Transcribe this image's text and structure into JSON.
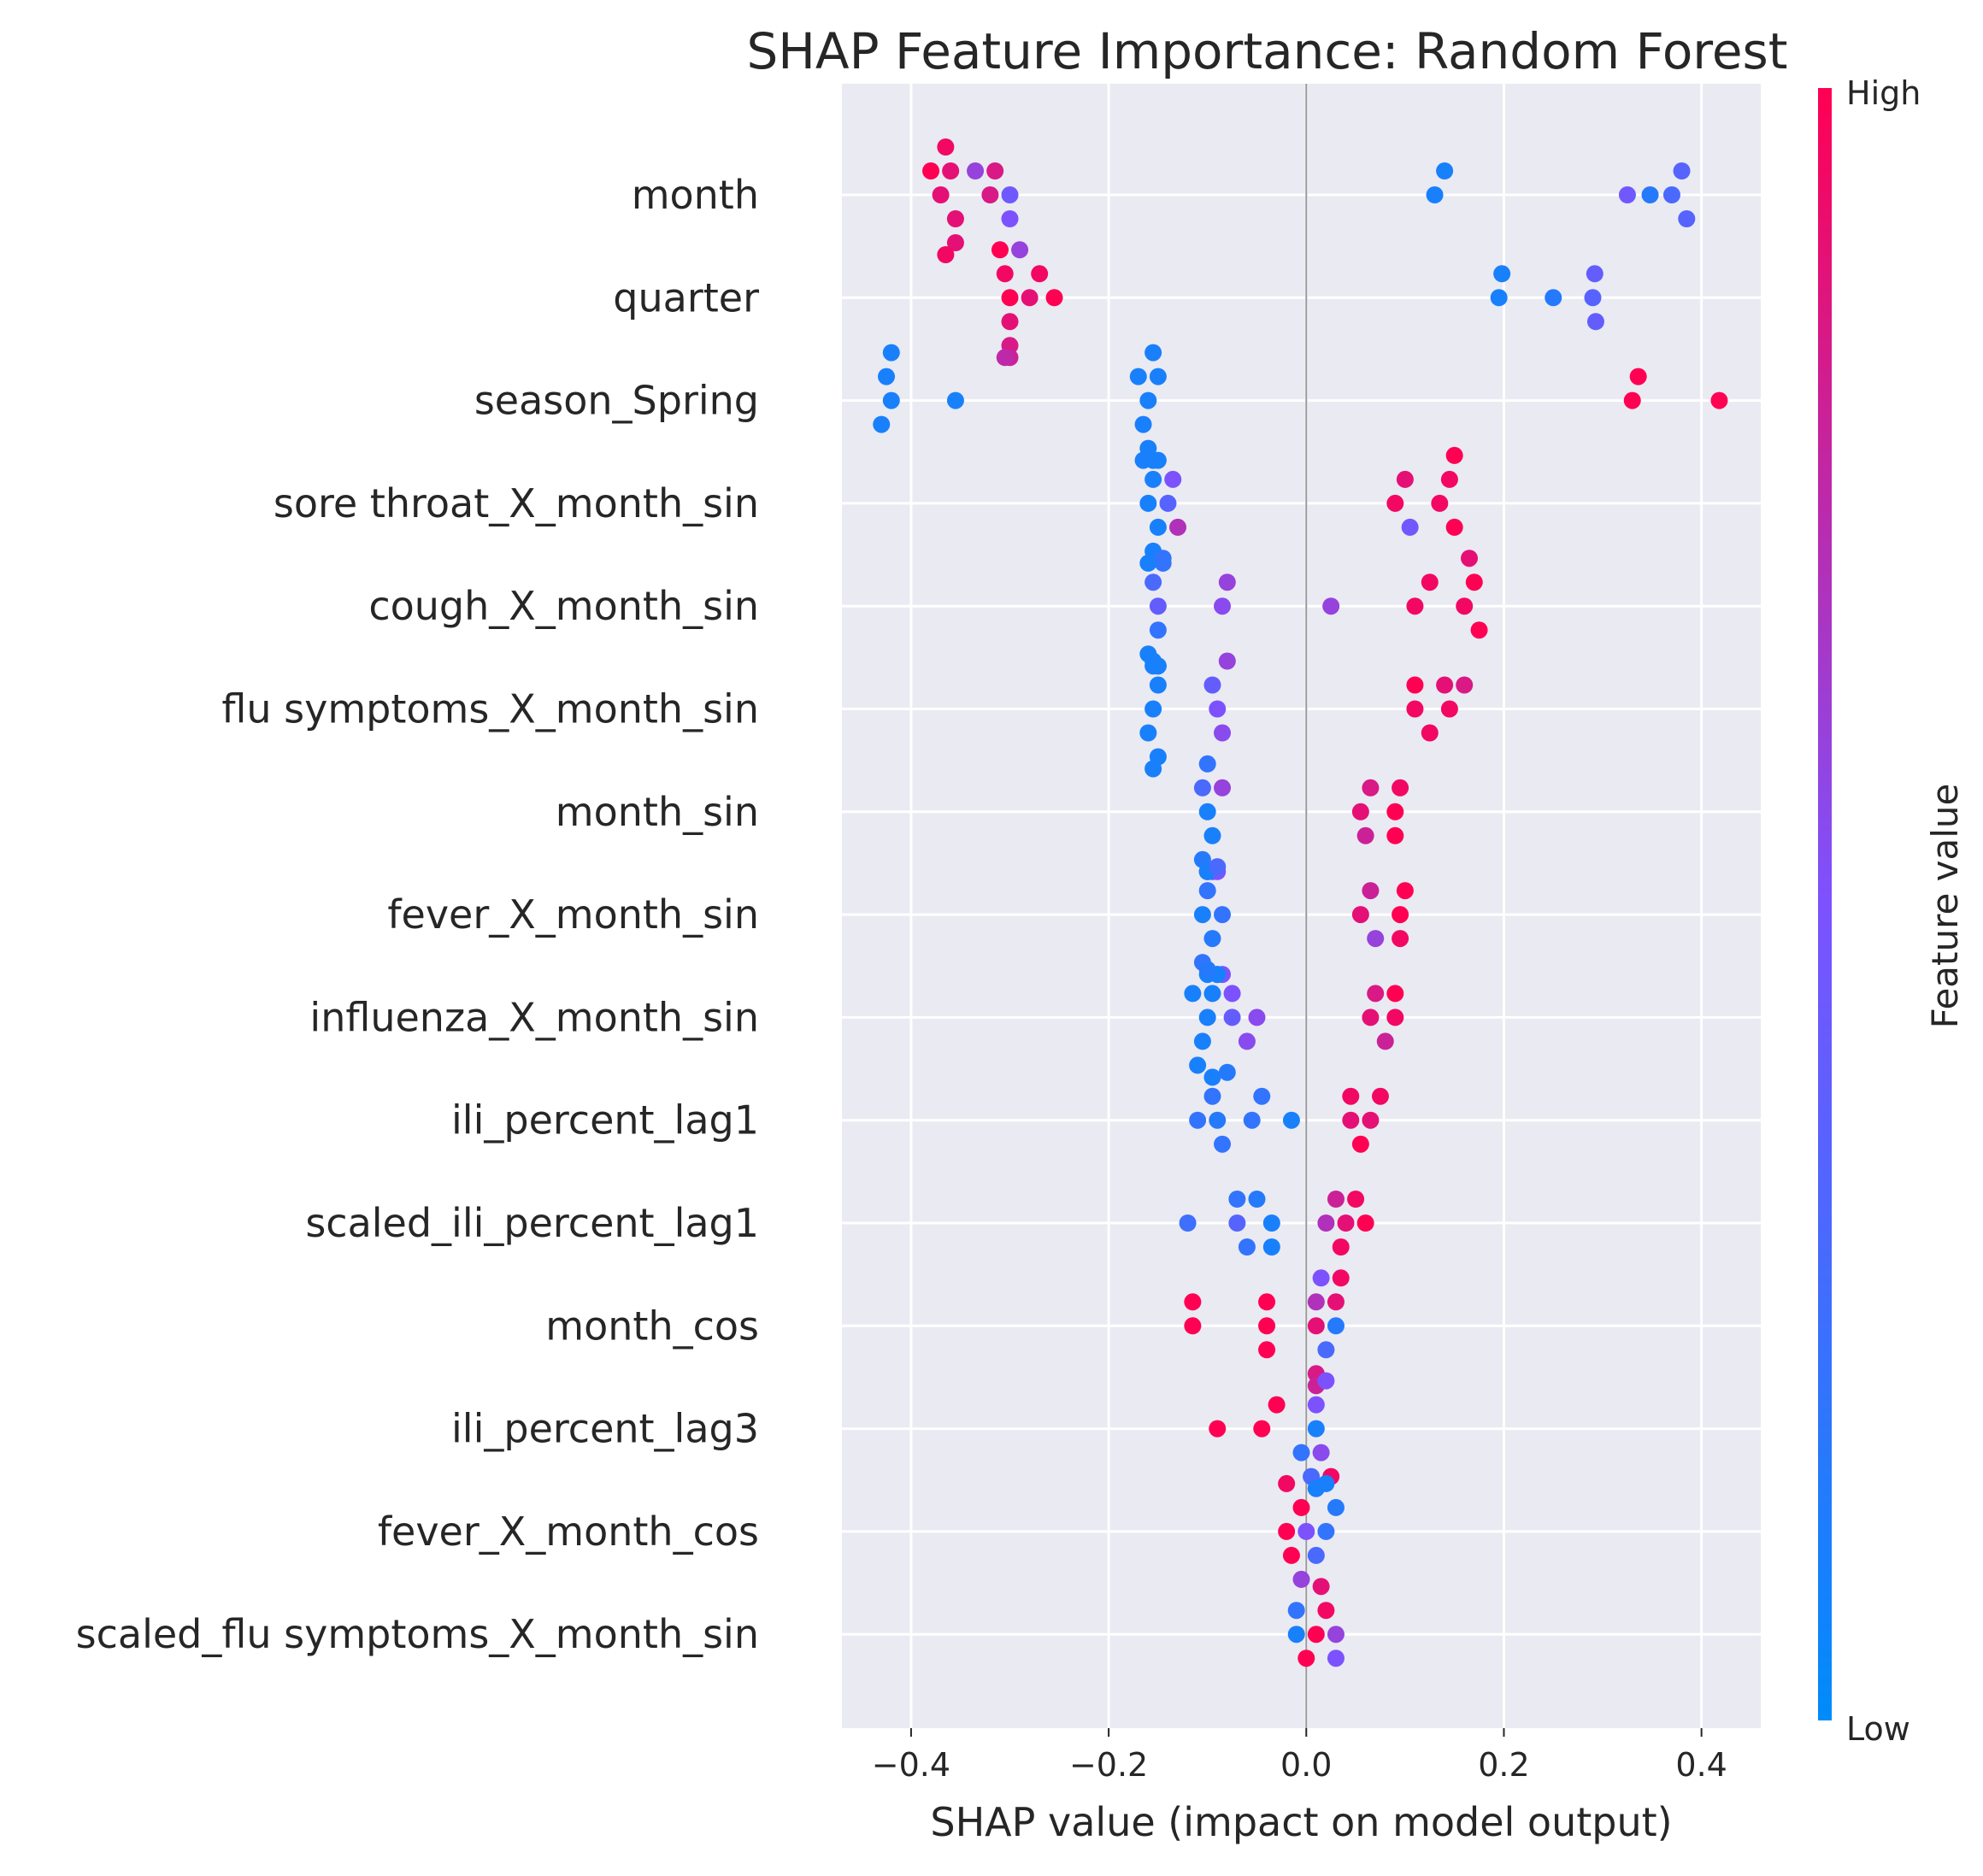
{
  "chart_data": {
    "type": "scatter",
    "title": "SHAP Feature Importance: Random Forest",
    "xlabel": "SHAP value (impact on model output)",
    "xlim": [
      -0.47,
      0.46
    ],
    "xticks": [
      "−0.4",
      "−0.2",
      "0.0",
      "0.2",
      "0.4"
    ],
    "xtick_values": [
      -0.4,
      -0.2,
      0.0,
      0.2,
      0.4
    ],
    "grid": true,
    "colorbar": {
      "label": "Feature value",
      "high": "High",
      "low": "Low",
      "low_color": "#008bfb",
      "mid_color": "#7c52ff",
      "high_color": "#ff0052"
    },
    "features": [
      {
        "name": "month",
        "points": [
          [
            -0.37,
            0.9
          ],
          [
            -0.36,
            0.9
          ],
          [
            -0.355,
            0.9
          ],
          [
            -0.32,
            0.85
          ],
          [
            -0.3,
            0.45
          ],
          [
            -0.38,
            1
          ],
          [
            -0.365,
            0.95
          ],
          [
            -0.355,
            0.9
          ],
          [
            -0.335,
            0.6
          ],
          [
            -0.315,
            0.85
          ],
          [
            -0.3,
            0.5
          ],
          [
            -0.365,
            0.95
          ],
          [
            0.13,
            0.1
          ],
          [
            0.14,
            0.1
          ],
          [
            0.325,
            0.45
          ],
          [
            0.348,
            0.15
          ],
          [
            0.37,
            0.3
          ],
          [
            0.38,
            0.35
          ],
          [
            0.385,
            0.35
          ]
        ]
      },
      {
        "name": "quarter",
        "points": [
          [
            -0.3,
            1
          ],
          [
            -0.305,
            0.95
          ],
          [
            -0.3,
            0.9
          ],
          [
            -0.31,
            1
          ],
          [
            -0.3,
            0.85
          ],
          [
            -0.29,
            0.6
          ],
          [
            -0.28,
            0.9
          ],
          [
            -0.27,
            0.95
          ],
          [
            -0.255,
            1
          ],
          [
            -0.3,
            0.8
          ],
          [
            -0.305,
            0.75
          ],
          [
            0.195,
            0.1
          ],
          [
            0.198,
            0.1
          ],
          [
            0.25,
            0.15
          ],
          [
            0.29,
            0.35
          ],
          [
            0.292,
            0.4
          ],
          [
            0.293,
            0.4
          ]
        ]
      },
      {
        "name": "season_Spring",
        "points": [
          [
            -0.42,
            0.1
          ],
          [
            -0.425,
            0.1
          ],
          [
            -0.43,
            0.1
          ],
          [
            -0.42,
            0.1
          ],
          [
            -0.355,
            0.1
          ],
          [
            -0.16,
            0.1
          ],
          [
            -0.15,
            0.1
          ],
          [
            -0.17,
            0.1
          ],
          [
            -0.165,
            0.1
          ],
          [
            -0.155,
            0.1
          ],
          [
            -0.16,
            0.1
          ],
          [
            -0.15,
            0.1
          ],
          [
            -0.165,
            0.1
          ],
          [
            -0.155,
            0.1
          ],
          [
            0.33,
            1
          ],
          [
            0.336,
            1
          ],
          [
            0.418,
            1
          ]
        ]
      },
      {
        "name": "sore throat_X_month_sin",
        "points": [
          [
            -0.16,
            0.1
          ],
          [
            -0.155,
            0.1
          ],
          [
            -0.15,
            0.1
          ],
          [
            -0.16,
            0.1
          ],
          [
            -0.155,
            0.1
          ],
          [
            -0.145,
            0.2
          ],
          [
            -0.14,
            0.35
          ],
          [
            -0.135,
            0.5
          ],
          [
            -0.13,
            0.7
          ],
          [
            -0.16,
            0.1
          ],
          [
            0.09,
            0.95
          ],
          [
            0.1,
            0.9
          ],
          [
            0.105,
            0.45
          ],
          [
            0.135,
            0.95
          ],
          [
            0.145,
            0.95
          ],
          [
            0.15,
            1
          ],
          [
            0.15,
            1
          ]
        ]
      },
      {
        "name": "cough_X_month_sin",
        "points": [
          [
            -0.15,
            0.4
          ],
          [
            -0.155,
            0.3
          ],
          [
            -0.15,
            0.2
          ],
          [
            -0.145,
            0.2
          ],
          [
            -0.16,
            0.1
          ],
          [
            -0.15,
            0.1
          ],
          [
            -0.155,
            0.1
          ],
          [
            -0.15,
            0.1
          ],
          [
            -0.085,
            0.55
          ],
          [
            -0.08,
            0.6
          ],
          [
            0.025,
            0.6
          ],
          [
            0.11,
            0.95
          ],
          [
            0.125,
            0.95
          ],
          [
            0.16,
            0.95
          ],
          [
            0.17,
            1
          ],
          [
            0.175,
            1
          ],
          [
            0.165,
            0.9
          ]
        ]
      },
      {
        "name": "flu symptoms_X_month_sin",
        "points": [
          [
            -0.155,
            0.1
          ],
          [
            -0.15,
            0.1
          ],
          [
            -0.16,
            0.1
          ],
          [
            -0.155,
            0.1
          ],
          [
            -0.15,
            0.1
          ],
          [
            -0.155,
            0.1
          ],
          [
            -0.09,
            0.5
          ],
          [
            -0.095,
            0.4
          ],
          [
            -0.085,
            0.55
          ],
          [
            -0.08,
            0.6
          ],
          [
            0.11,
            0.95
          ],
          [
            0.145,
            0.95
          ],
          [
            0.11,
            1
          ],
          [
            0.125,
            0.95
          ],
          [
            0.14,
            0.9
          ],
          [
            0.16,
            0.85
          ]
        ]
      },
      {
        "name": "month_sin",
        "points": [
          [
            -0.1,
            0.1
          ],
          [
            -0.105,
            0.3
          ],
          [
            -0.095,
            0.1
          ],
          [
            -0.1,
            0.2
          ],
          [
            -0.105,
            0.15
          ],
          [
            -0.1,
            0.1
          ],
          [
            -0.095,
            0.4
          ],
          [
            -0.09,
            0.5
          ],
          [
            -0.085,
            0.6
          ],
          [
            -0.1,
            0.1
          ],
          [
            -0.1,
            0.1
          ],
          [
            0.055,
            0.9
          ],
          [
            0.065,
            0.85
          ],
          [
            0.06,
            0.8
          ],
          [
            0.09,
            1
          ],
          [
            0.095,
            0.95
          ],
          [
            0.09,
            1
          ]
        ]
      },
      {
        "name": "fever_X_month_sin",
        "points": [
          [
            -0.085,
            0.2
          ],
          [
            -0.105,
            0.1
          ],
          [
            -0.1,
            0.2
          ],
          [
            -0.095,
            0.15
          ],
          [
            -0.09,
            0.3
          ],
          [
            -0.105,
            0.2
          ],
          [
            -0.1,
            0.1
          ],
          [
            -0.09,
            0.2
          ],
          [
            -0.085,
            0.5
          ],
          [
            -0.09,
            0.1
          ],
          [
            0.055,
            0.9
          ],
          [
            0.065,
            0.8
          ],
          [
            0.07,
            0.6
          ],
          [
            0.095,
            1
          ],
          [
            0.1,
            1
          ],
          [
            0.095,
            0.95
          ]
        ]
      },
      {
        "name": "influenza_X_month_sin",
        "points": [
          [
            -0.1,
            0.1
          ],
          [
            -0.095,
            0.1
          ],
          [
            -0.075,
            0.4
          ],
          [
            -0.105,
            0.1
          ],
          [
            -0.1,
            0.15
          ],
          [
            -0.115,
            0.1
          ],
          [
            -0.11,
            0.1
          ],
          [
            -0.095,
            0.1
          ],
          [
            -0.075,
            0.5
          ],
          [
            -0.06,
            0.55
          ],
          [
            -0.05,
            0.55
          ],
          [
            0.09,
            0.95
          ],
          [
            0.065,
            0.9
          ],
          [
            0.07,
            0.85
          ],
          [
            0.08,
            0.8
          ],
          [
            0.09,
            1
          ]
        ]
      },
      {
        "name": "ili_percent_lag1",
        "points": [
          [
            -0.11,
            0.2
          ],
          [
            -0.095,
            0.2
          ],
          [
            -0.09,
            0.15
          ],
          [
            -0.085,
            0.2
          ],
          [
            -0.08,
            0.15
          ],
          [
            -0.055,
            0.2
          ],
          [
            -0.045,
            0.2
          ],
          [
            -0.015,
            0.1
          ],
          [
            0.045,
            0.9
          ],
          [
            0.045,
            0.95
          ],
          [
            0.055,
            1
          ],
          [
            0.065,
            0.9
          ],
          [
            0.075,
            0.95
          ]
        ]
      },
      {
        "name": "scaled_ili_percent_lag1",
        "points": [
          [
            -0.07,
            0.35
          ],
          [
            -0.035,
            0.1
          ],
          [
            -0.12,
            0.25
          ],
          [
            -0.07,
            0.2
          ],
          [
            -0.06,
            0.2
          ],
          [
            -0.05,
            0.15
          ],
          [
            -0.035,
            0.1
          ],
          [
            0.02,
            0.7
          ],
          [
            0.03,
            0.8
          ],
          [
            0.04,
            0.9
          ],
          [
            0.05,
            0.95
          ],
          [
            0.06,
            1
          ],
          [
            0.035,
            0.95
          ]
        ]
      },
      {
        "name": "month_cos",
        "points": [
          [
            -0.115,
            1
          ],
          [
            -0.115,
            1
          ],
          [
            -0.04,
            1
          ],
          [
            -0.04,
            1
          ],
          [
            -0.04,
            1
          ],
          [
            0.01,
            0.9
          ],
          [
            0.01,
            0.7
          ],
          [
            0.03,
            0.15
          ],
          [
            0.02,
            0.3
          ],
          [
            0.015,
            0.5
          ],
          [
            0.03,
            0.9
          ],
          [
            0.035,
            0.95
          ],
          [
            0.01,
            0.85
          ],
          [
            0.01,
            0.8
          ]
        ]
      },
      {
        "name": "ili_percent_lag3",
        "points": [
          [
            -0.09,
            1
          ],
          [
            -0.045,
            1
          ],
          [
            -0.03,
            1
          ],
          [
            0.01,
            0.1
          ],
          [
            0.01,
            0.5
          ],
          [
            0.015,
            0.55
          ],
          [
            0.02,
            0.5
          ],
          [
            -0.005,
            0.2
          ],
          [
            0.005,
            0.3
          ],
          [
            0.025,
            0.95
          ],
          [
            0.01,
            0.15
          ],
          [
            0.01,
            0.1
          ],
          [
            0.01,
            0.1
          ]
        ]
      },
      {
        "name": "fever_X_month_cos",
        "points": [
          [
            -0.02,
            1
          ],
          [
            -0.005,
            1
          ],
          [
            -0.015,
            1
          ],
          [
            -0.02,
            0.95
          ],
          [
            -0.005,
            0.6
          ],
          [
            0.0,
            0.5
          ],
          [
            0.01,
            0.3
          ],
          [
            0.02,
            0.2
          ],
          [
            0.03,
            0.15
          ],
          [
            0.02,
            0.1
          ]
        ]
      },
      {
        "name": "scaled_flu symptoms_X_month_sin",
        "points": [
          [
            -0.01,
            0.1
          ],
          [
            -0.01,
            0.2
          ],
          [
            0.0,
            1
          ],
          [
            0.01,
            1
          ],
          [
            0.02,
            0.95
          ],
          [
            0.03,
            0.6
          ],
          [
            0.03,
            0.5
          ],
          [
            0.015,
            0.9
          ]
        ]
      }
    ]
  }
}
